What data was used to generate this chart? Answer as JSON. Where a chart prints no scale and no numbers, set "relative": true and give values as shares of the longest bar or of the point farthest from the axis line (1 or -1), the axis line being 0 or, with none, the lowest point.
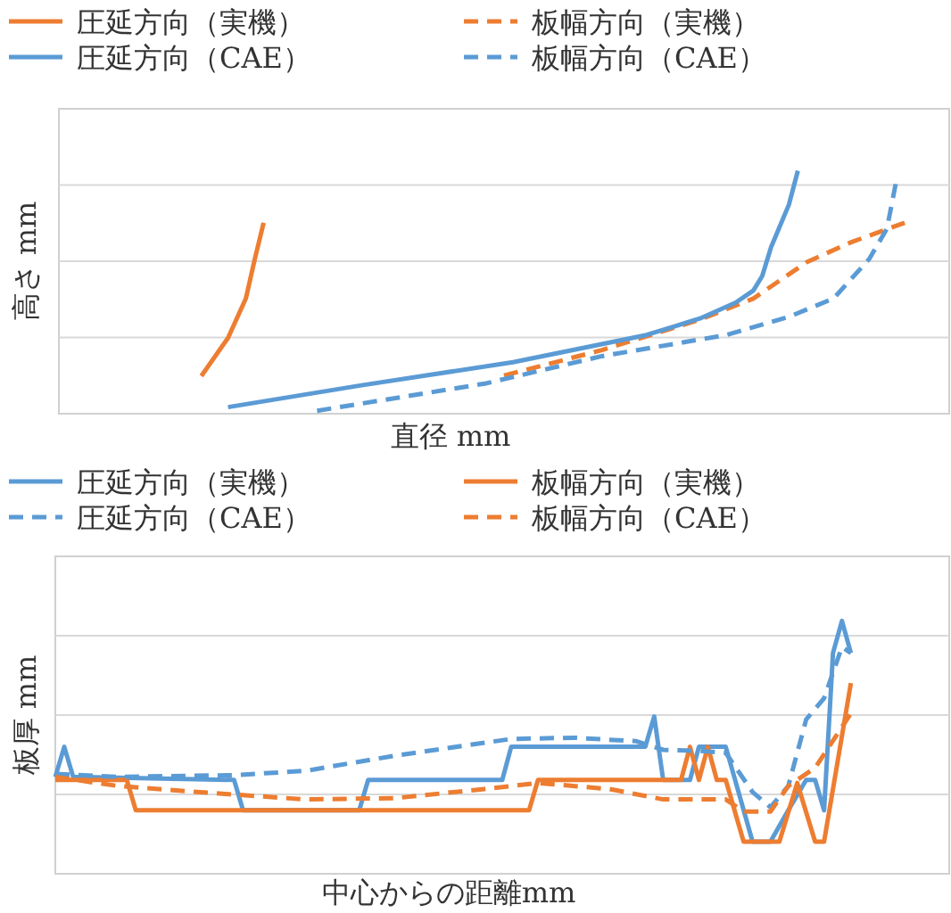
{
  "chart_data": [
    {
      "type": "line",
      "relative": true,
      "xlabel": "直径 mm",
      "ylabel": "高さ mm",
      "grid": "y",
      "legend": "top",
      "categories": [
        null,
        null,
        null,
        null,
        null,
        null,
        null,
        null,
        null,
        null,
        null,
        null,
        null,
        null,
        null,
        null,
        null,
        null,
        null,
        null,
        null,
        null,
        null,
        null,
        null,
        null,
        null,
        null,
        null,
        null,
        null,
        null,
        null,
        null,
        null,
        null,
        null,
        null,
        null,
        null,
        null,
        null,
        null,
        null,
        null,
        null,
        null,
        null,
        null,
        null,
        null,
        null,
        null,
        null,
        null,
        null,
        null,
        null,
        null,
        null,
        null,
        null,
        null,
        null,
        null,
        null,
        null,
        null,
        null,
        null,
        null,
        null,
        null,
        null,
        null,
        null,
        null,
        null,
        null,
        null,
        null,
        null,
        null,
        null,
        null,
        null,
        null,
        null,
        null,
        null,
        null,
        null,
        null,
        null,
        null,
        null,
        null,
        null,
        null,
        null,
        null
      ],
      "series": [
        {
          "name": "圧延方向（実機）",
          "color": "#ed7d31",
          "line_style": "solid",
          "values": [
            null,
            null,
            null,
            null,
            null,
            null,
            null,
            null,
            null,
            null,
            null,
            null,
            null,
            null,
            null,
            null,
            0.155,
            null,
            null,
            0.312,
            null,
            0.474,
            0.636,
            0.786,
            null,
            null,
            null,
            null,
            null,
            null,
            null,
            null,
            null,
            null,
            null,
            null,
            null,
            null,
            null,
            null,
            null,
            null,
            null,
            null,
            null,
            null,
            null,
            null,
            null,
            null,
            null,
            null,
            null,
            null,
            null,
            null,
            null,
            null,
            null,
            null,
            null,
            null,
            null,
            null,
            null,
            null,
            null,
            null,
            null,
            null,
            null,
            null,
            null,
            null,
            null,
            null,
            null,
            null,
            null,
            null,
            null,
            null,
            null,
            null,
            null,
            null,
            null,
            null,
            null,
            null,
            null,
            null,
            null,
            null,
            null,
            null,
            null,
            null,
            null,
            null,
            null
          ]
        },
        {
          "name": "板幅方向（実機）",
          "color": "#ed7d31",
          "line_style": "dashed",
          "values": [
            null,
            null,
            null,
            null,
            null,
            null,
            null,
            null,
            null,
            null,
            null,
            null,
            null,
            null,
            null,
            null,
            null,
            null,
            null,
            null,
            null,
            null,
            null,
            null,
            null,
            null,
            null,
            null,
            null,
            null,
            null,
            null,
            null,
            null,
            null,
            null,
            null,
            null,
            null,
            null,
            null,
            null,
            null,
            null,
            null,
            null,
            null,
            null,
            null,
            null,
            0.157,
            null,
            null,
            null,
            null,
            null,
            null,
            null,
            null,
            null,
            null,
            0.262,
            null,
            null,
            null,
            null,
            null,
            null,
            null,
            null,
            null,
            null,
            0.387,
            null,
            null,
            null,
            null,
            null,
            0.474,
            null,
            null,
            0.549,
            null,
            null,
            0.624,
            null,
            null,
            null,
            null,
            0.706,
            null,
            null,
            null,
            null,
            null,
            0.786,
            null,
            null,
            null,
            null,
            null
          ]
        },
        {
          "name": "圧延方向（CAE）",
          "color": "#5b9bd5",
          "line_style": "solid",
          "values": [
            null,
            null,
            null,
            null,
            null,
            null,
            null,
            null,
            null,
            null,
            null,
            null,
            null,
            null,
            null,
            null,
            null,
            null,
            null,
            0.027,
            null,
            null,
            null,
            null,
            null,
            null,
            null,
            null,
            null,
            null,
            null,
            null,
            null,
            null,
            0.117,
            null,
            null,
            null,
            null,
            null,
            null,
            null,
            null,
            null,
            null,
            null,
            null,
            null,
            null,
            null,
            null,
            0.212,
            null,
            null,
            null,
            null,
            null,
            null,
            null,
            null,
            null,
            null,
            null,
            null,
            null,
            null,
            0.324,
            null,
            null,
            null,
            null,
            null,
            0.392,
            null,
            null,
            null,
            0.457,
            null,
            0.507,
            0.567,
            0.686,
            null,
            0.861,
            1,
            null,
            null,
            null,
            null,
            null,
            null,
            null,
            null,
            null,
            null,
            null,
            null,
            null,
            null,
            null,
            null,
            null
          ]
        },
        {
          "name": "板幅方向（CAE）",
          "color": "#5b9bd5",
          "line_style": "dashed",
          "values": [
            null,
            null,
            null,
            null,
            null,
            null,
            null,
            null,
            null,
            null,
            null,
            null,
            null,
            null,
            null,
            null,
            null,
            null,
            null,
            null,
            null,
            null,
            null,
            null,
            null,
            null,
            null,
            null,
            null,
            0.012,
            null,
            null,
            null,
            null,
            null,
            null,
            null,
            null,
            null,
            null,
            null,
            null,
            null,
            null,
            null,
            null,
            null,
            null,
            0.125,
            null,
            null,
            null,
            null,
            null,
            null,
            null,
            null,
            null,
            null,
            null,
            null,
            0.237,
            null,
            null,
            null,
            null,
            null,
            null,
            null,
            null,
            null,
            null,
            null,
            null,
            null,
            0.324,
            null,
            null,
            null,
            null,
            null,
            null,
            0.399,
            null,
            null,
            null,
            null,
            0.474,
            null,
            null,
            null,
            0.636,
            null,
            0.761,
            0.948,
            null,
            null,
            null,
            null,
            null,
            null
          ]
        }
      ]
    },
    {
      "type": "line",
      "relative": true,
      "xlabel": "中心からの距離mm",
      "ylabel": "板厚 mm",
      "grid": "y",
      "legend": "top",
      "categories": [
        null,
        null,
        null,
        null,
        null,
        null,
        null,
        null,
        null,
        null,
        null,
        null,
        null,
        null,
        null,
        null,
        null,
        null,
        null,
        null,
        null,
        null,
        null,
        null,
        null,
        null,
        null,
        null,
        null,
        null,
        null,
        null,
        null,
        null,
        null,
        null,
        null,
        null,
        null,
        null,
        null,
        null,
        null,
        null,
        null,
        null,
        null,
        null,
        null,
        null,
        null,
        null,
        null,
        null,
        null,
        null,
        null,
        null,
        null,
        null,
        null,
        null,
        null,
        null,
        null,
        null,
        null,
        null,
        null,
        null,
        null,
        null,
        null,
        null,
        null,
        null,
        null,
        null,
        null,
        null,
        null,
        null,
        null,
        null,
        null,
        null,
        null,
        null,
        null,
        null,
        null,
        null,
        null,
        null,
        null,
        null,
        null,
        null,
        null,
        null,
        null
      ],
      "series": [
        {
          "name": "圧延方向（実機）",
          "color": "#5b9bd5",
          "line_style": "solid",
          "values": [
            0.383,
            0.502,
            0.383,
            null,
            null,
            null,
            null,
            null,
            null,
            null,
            null,
            null,
            null,
            null,
            null,
            null,
            null,
            null,
            null,
            null,
            0.371,
            0.251,
            null,
            null,
            null,
            null,
            null,
            null,
            null,
            null,
            null,
            null,
            null,
            null,
            0.251,
            0.371,
            null,
            null,
            null,
            null,
            null,
            null,
            null,
            null,
            null,
            null,
            null,
            null,
            null,
            null,
            0.371,
            0.502,
            null,
            null,
            null,
            null,
            null,
            null,
            null,
            null,
            null,
            null,
            null,
            null,
            null,
            null,
            0.502,
            0.622,
            0.371,
            null,
            null,
            0.371,
            0.502,
            null,
            null,
            0.502,
            null,
            null,
            0.127,
            null,
            0.127,
            null,
            0.251,
            null,
            0.371,
            0.371,
            0.251,
            0.873,
            1,
            0.873,
            null,
            null,
            null,
            null,
            null,
            null,
            null,
            null,
            null,
            null,
            null
          ]
        },
        {
          "name": "板幅方向（実機）",
          "color": "#ed7d31",
          "line_style": "solid",
          "values": [
            0.371,
            null,
            null,
            null,
            null,
            null,
            null,
            null,
            0.371,
            0.251,
            null,
            null,
            null,
            null,
            null,
            null,
            null,
            null,
            null,
            null,
            null,
            null,
            null,
            null,
            null,
            null,
            null,
            null,
            null,
            null,
            null,
            null,
            null,
            null,
            null,
            null,
            null,
            null,
            null,
            null,
            null,
            null,
            null,
            null,
            null,
            null,
            null,
            null,
            null,
            null,
            null,
            null,
            null,
            0.251,
            0.371,
            null,
            null,
            null,
            null,
            null,
            null,
            null,
            null,
            null,
            null,
            null,
            null,
            null,
            null,
            null,
            0.371,
            0.502,
            0.371,
            0.502,
            0.371,
            0.371,
            null,
            0.127,
            null,
            null,
            null,
            0.127,
            null,
            0.359,
            null,
            0.127,
            0.127,
            null,
            null,
            0.754,
            null,
            null,
            null,
            null,
            null,
            null,
            null,
            null,
            null,
            null,
            null
          ]
        },
        {
          "name": "圧延方向（CAE）",
          "color": "#5b9bd5",
          "line_style": "dashed",
          "values": [
            0.395,
            null,
            null,
            null,
            null,
            null,
            null,
            0.383,
            null,
            null,
            null,
            null,
            null,
            null,
            null,
            null,
            null,
            null,
            null,
            null,
            0.39,
            null,
            null,
            null,
            null,
            null,
            null,
            null,
            0.407,
            null,
            null,
            null,
            null,
            null,
            null,
            null,
            null,
            null,
            0.467,
            null,
            null,
            null,
            null,
            null,
            null,
            null,
            null,
            null,
            null,
            null,
            null,
            0.533,
            null,
            null,
            null,
            null,
            null,
            null,
            0.538,
            null,
            null,
            null,
            null,
            null,
            null,
            0.524,
            null,
            null,
            0.49,
            null,
            null,
            null,
            0.486,
            null,
            null,
            0.478,
            null,
            null,
            0.323,
            null,
            0.263,
            null,
            0.347,
            null,
            0.61,
            null,
            0.694,
            null,
            0.897,
            0.873,
            null,
            null,
            null,
            null,
            null,
            null,
            null,
            null,
            null,
            null,
            null
          ]
        },
        {
          "name": "板幅方向（CAE）",
          "color": "#ed7d31",
          "line_style": "dashed",
          "values": [
            0.383,
            null,
            null,
            null,
            null,
            null,
            null,
            0.347,
            null,
            null,
            null,
            null,
            null,
            null,
            null,
            null,
            null,
            null,
            0.318,
            null,
            null,
            null,
            null,
            null,
            null,
            null,
            null,
            null,
            0.294,
            null,
            null,
            null,
            null,
            null,
            null,
            null,
            null,
            null,
            0.299,
            null,
            null,
            null,
            null,
            null,
            null,
            null,
            null,
            null,
            0.335,
            null,
            null,
            null,
            null,
            null,
            0.359,
            null,
            null,
            null,
            null,
            null,
            null,
            null,
            0.335,
            null,
            null,
            null,
            null,
            null,
            0.294,
            null,
            null,
            null,
            null,
            null,
            null,
            0.294,
            null,
            0.246,
            null,
            null,
            0.246,
            null,
            0.347,
            null,
            null,
            0.419,
            null,
            null,
            null,
            0.634,
            null,
            null,
            null,
            null,
            null,
            null,
            null,
            null,
            null,
            null,
            null
          ]
        }
      ]
    }
  ]
}
